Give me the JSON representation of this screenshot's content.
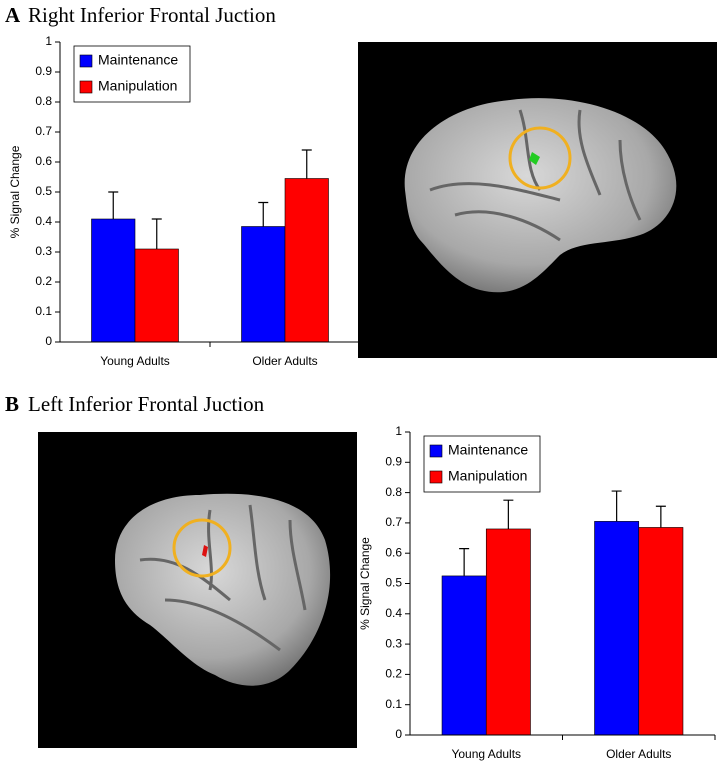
{
  "chart_data": [
    {
      "type": "bar",
      "panel": "A",
      "title": "Right Inferior Frontal Juction",
      "y_label": "% Signal Change",
      "categories": [
        "Young Adults",
        "Older Adults"
      ],
      "series": [
        {
          "name": "Maintenance",
          "color": "#0000ff",
          "values": [
            0.41,
            0.385
          ],
          "errors": [
            0.09,
            0.08
          ]
        },
        {
          "name": "Manipulation",
          "color": "#ff0000",
          "values": [
            0.31,
            0.545
          ],
          "errors": [
            0.1,
            0.095
          ]
        }
      ],
      "ylim": [
        0,
        1
      ],
      "yticks": [
        0,
        0.1,
        0.2,
        0.3,
        0.4,
        0.5,
        0.6,
        0.7,
        0.8,
        0.9,
        1
      ],
      "grid": false,
      "legend": "upper-left"
    },
    {
      "type": "bar",
      "panel": "B",
      "title": "Left Inferior Frontal Juction",
      "y_label": "% Signal Change",
      "categories": [
        "Young Adults",
        "Older Adults"
      ],
      "series": [
        {
          "name": "Maintenance",
          "color": "#0000ff",
          "values": [
            0.525,
            0.705
          ],
          "errors": [
            0.09,
            0.1
          ]
        },
        {
          "name": "Manipulation",
          "color": "#ff0000",
          "values": [
            0.68,
            0.685
          ],
          "errors": [
            0.095,
            0.07
          ]
        }
      ],
      "ylim": [
        0,
        1
      ],
      "yticks": [
        0,
        0.1,
        0.2,
        0.3,
        0.4,
        0.5,
        0.6,
        0.7,
        0.8,
        0.9,
        1
      ],
      "grid": false,
      "legend": "upper-left"
    }
  ]
}
